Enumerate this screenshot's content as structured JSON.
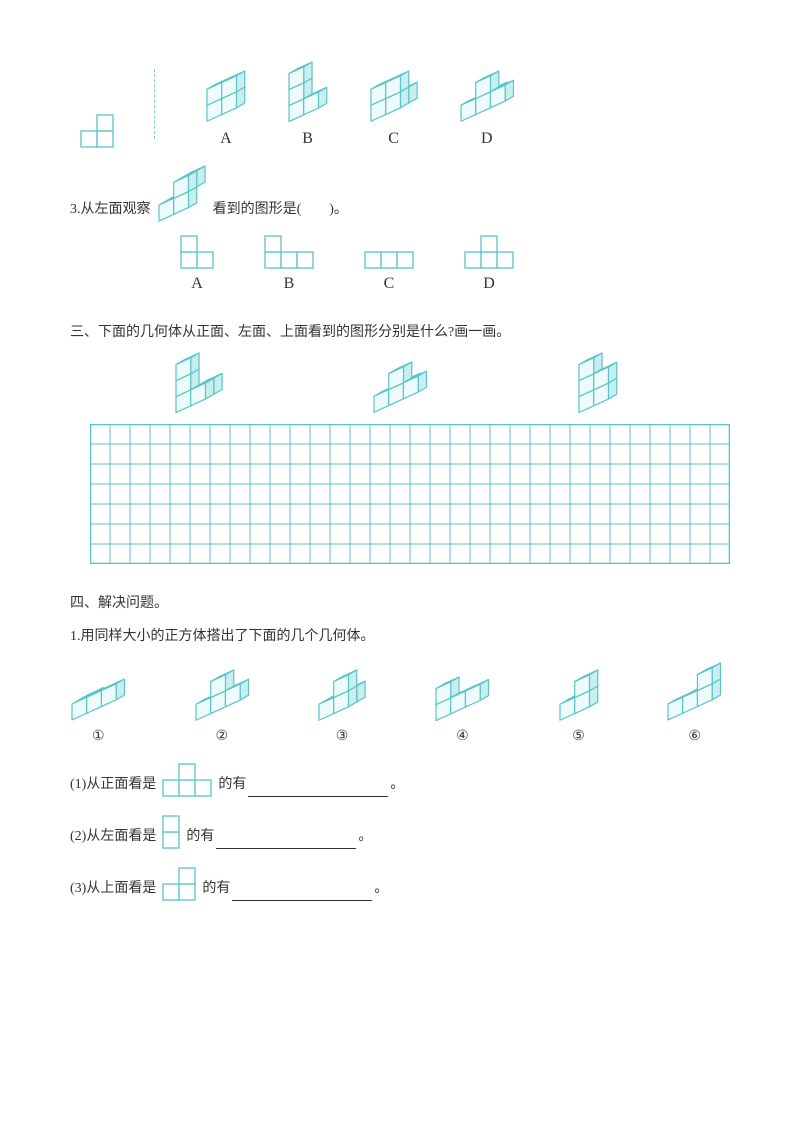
{
  "colors": {
    "cube_stroke": "#5bc4c9",
    "cube_fill": "#eefbfb",
    "cube_top": "#d9f4f4",
    "cube_side": "#c9eeef",
    "flat_stroke": "#5bc4c9",
    "flat_fill": "#ffffff",
    "grid_stroke": "#5bc4c9",
    "text": "#333333"
  },
  "q2_options": {
    "labels": [
      "A",
      "B",
      "C",
      "D"
    ]
  },
  "q3": {
    "prefix": "3.从左面观察",
    "suffix": "看到的图形是(　　)。",
    "option_labels": [
      "A",
      "B",
      "C",
      "D"
    ]
  },
  "sec3": {
    "heading": "三、下面的几何体从正面、左面、上面看到的图形分别是什么?画一画。"
  },
  "grid": {
    "cols": 32,
    "rows": 7,
    "cell": 20
  },
  "sec4": {
    "heading": "四、解决问题。",
    "q1_intro": "1.用同样大小的正方体搭出了下面的几个几何体。",
    "nums": [
      "①",
      "②",
      "③",
      "④",
      "⑤",
      "⑥"
    ],
    "p1_prefix": "(1)从正面看是",
    "p1_mid": "的有",
    "p1_end": "。",
    "p2_prefix": "(2)从左面看是",
    "p2_mid": "的有",
    "p2_end": "。",
    "p3_prefix": "(3)从上面看是",
    "p3_mid": "的有",
    "p3_end": "。"
  },
  "iso": {
    "unit": 16,
    "shapes_q2_target": [
      [
        0,
        0,
        0
      ],
      [
        1,
        0,
        0
      ],
      [
        0,
        1,
        0
      ]
    ],
    "q2_A": [
      [
        0,
        0,
        0
      ],
      [
        1,
        0,
        0
      ],
      [
        0,
        1,
        0
      ],
      [
        0,
        0,
        1
      ],
      [
        1,
        0,
        1
      ]
    ],
    "q2_B": [
      [
        0,
        0,
        0
      ],
      [
        1,
        0,
        0
      ],
      [
        0,
        0,
        1
      ],
      [
        0,
        0,
        2
      ]
    ],
    "q2_C": [
      [
        0,
        0,
        0
      ],
      [
        1,
        0,
        0
      ],
      [
        1,
        1,
        0
      ],
      [
        0,
        0,
        1
      ],
      [
        1,
        0,
        1
      ]
    ],
    "q2_D": [
      [
        0,
        0,
        0
      ],
      [
        1,
        0,
        0
      ],
      [
        2,
        0,
        0
      ],
      [
        1,
        1,
        0
      ],
      [
        1,
        0,
        1
      ]
    ],
    "q3_solid": [
      [
        0,
        0,
        0
      ],
      [
        1,
        0,
        0
      ],
      [
        0,
        1,
        0
      ],
      [
        1,
        0,
        1
      ],
      [
        1,
        1,
        1
      ]
    ],
    "sec3_a": [
      [
        0,
        0,
        0
      ],
      [
        1,
        0,
        0
      ],
      [
        1,
        1,
        0
      ],
      [
        0,
        0,
        1
      ],
      [
        0,
        0,
        2
      ]
    ],
    "sec3_b": [
      [
        0,
        0,
        0
      ],
      [
        1,
        0,
        0
      ],
      [
        2,
        0,
        0
      ],
      [
        1,
        1,
        0
      ],
      [
        1,
        0,
        1
      ]
    ],
    "sec3_c": [
      [
        0,
        0,
        0
      ],
      [
        1,
        0,
        0
      ],
      [
        0,
        1,
        0
      ],
      [
        0,
        0,
        1
      ],
      [
        1,
        0,
        1
      ],
      [
        0,
        0,
        2
      ]
    ],
    "s4_1": [
      [
        0,
        0,
        0
      ],
      [
        1,
        0,
        0
      ],
      [
        2,
        0,
        0
      ],
      [
        0,
        1,
        0
      ]
    ],
    "s4_2": [
      [
        0,
        0,
        0
      ],
      [
        1,
        0,
        0
      ],
      [
        2,
        0,
        0
      ],
      [
        1,
        0,
        1
      ]
    ],
    "s4_3": [
      [
        0,
        0,
        0
      ],
      [
        1,
        0,
        0
      ],
      [
        0,
        1,
        0
      ],
      [
        1,
        1,
        0
      ],
      [
        1,
        0,
        1
      ]
    ],
    "s4_4": [
      [
        0,
        0,
        0
      ],
      [
        1,
        0,
        0
      ],
      [
        2,
        0,
        0
      ],
      [
        0,
        0,
        1
      ]
    ],
    "s4_5": [
      [
        0,
        0,
        0
      ],
      [
        1,
        0,
        0
      ],
      [
        0,
        1,
        0
      ],
      [
        1,
        0,
        1
      ]
    ],
    "s4_6": [
      [
        0,
        0,
        0
      ],
      [
        1,
        0,
        0
      ],
      [
        2,
        0,
        0
      ],
      [
        1,
        1,
        0
      ],
      [
        2,
        0,
        1
      ]
    ]
  },
  "flat": {
    "unit": 16,
    "q2_target": [
      [
        0,
        0
      ],
      [
        1,
        0
      ],
      [
        1,
        1
      ]
    ],
    "q3_A": [
      [
        0,
        0
      ],
      [
        1,
        0
      ],
      [
        0,
        1
      ]
    ],
    "q3_B": [
      [
        0,
        0
      ],
      [
        1,
        0
      ],
      [
        2,
        0
      ],
      [
        0,
        1
      ]
    ],
    "q3_C": [
      [
        0,
        0
      ],
      [
        1,
        0
      ],
      [
        2,
        0
      ]
    ],
    "q3_D": [
      [
        0,
        0
      ],
      [
        1,
        0
      ],
      [
        2,
        0
      ],
      [
        1,
        1
      ]
    ],
    "p1": [
      [
        0,
        0
      ],
      [
        1,
        0
      ],
      [
        2,
        0
      ],
      [
        1,
        1
      ]
    ],
    "p2": [
      [
        0,
        0
      ],
      [
        0,
        1
      ]
    ],
    "p3": [
      [
        0,
        0
      ],
      [
        1,
        0
      ],
      [
        1,
        1
      ]
    ]
  }
}
